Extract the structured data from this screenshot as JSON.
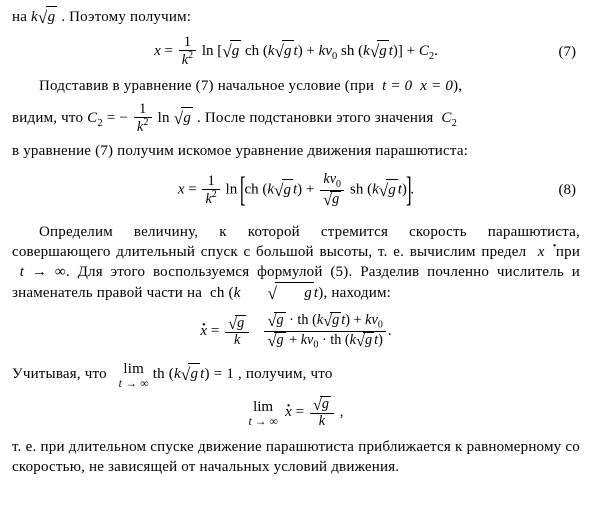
{
  "line0": "на",
  "p1_a": "Подставив в уравнение (7) начальное условие (при",
  "p1_b": "),",
  "p2_a": "видим, что",
  "p2_b": ". После подстановки этого значения",
  "p3": "в уравнение (7) получим искомое уравнение движения парашютиста:",
  "p4": "Определим величину, к которой стремится скорость парашютиста, совершающего длительный спуск с большой высоты, т. е. вычислим предел",
  "p4b": "при",
  "p4c": ". Для этого воспользуемся формулой (5). Разделив почленно числитель и знаменатель правой части на",
  "p4d": "находим:",
  "p5a": "Учитывая, что",
  "p5b": ", получим, что",
  "p6": "т. е. при длительном спуске движение парашютиста приближается к равномерному со скоростью, не зависящей от начальных условий движения.",
  "eqnum7": "(7)",
  "eqnum8": "(8)",
  "t0": "t = 0",
  "x0": "x = 0",
  "poetomu": ". Поэтому получим:",
  "tinf": "t → ∞",
  "lim": "lim",
  "th1": "= 1",
  "C2": "C",
  "sub2": "2",
  "colors": {
    "text": "#000000",
    "bg": "#ffffff"
  }
}
